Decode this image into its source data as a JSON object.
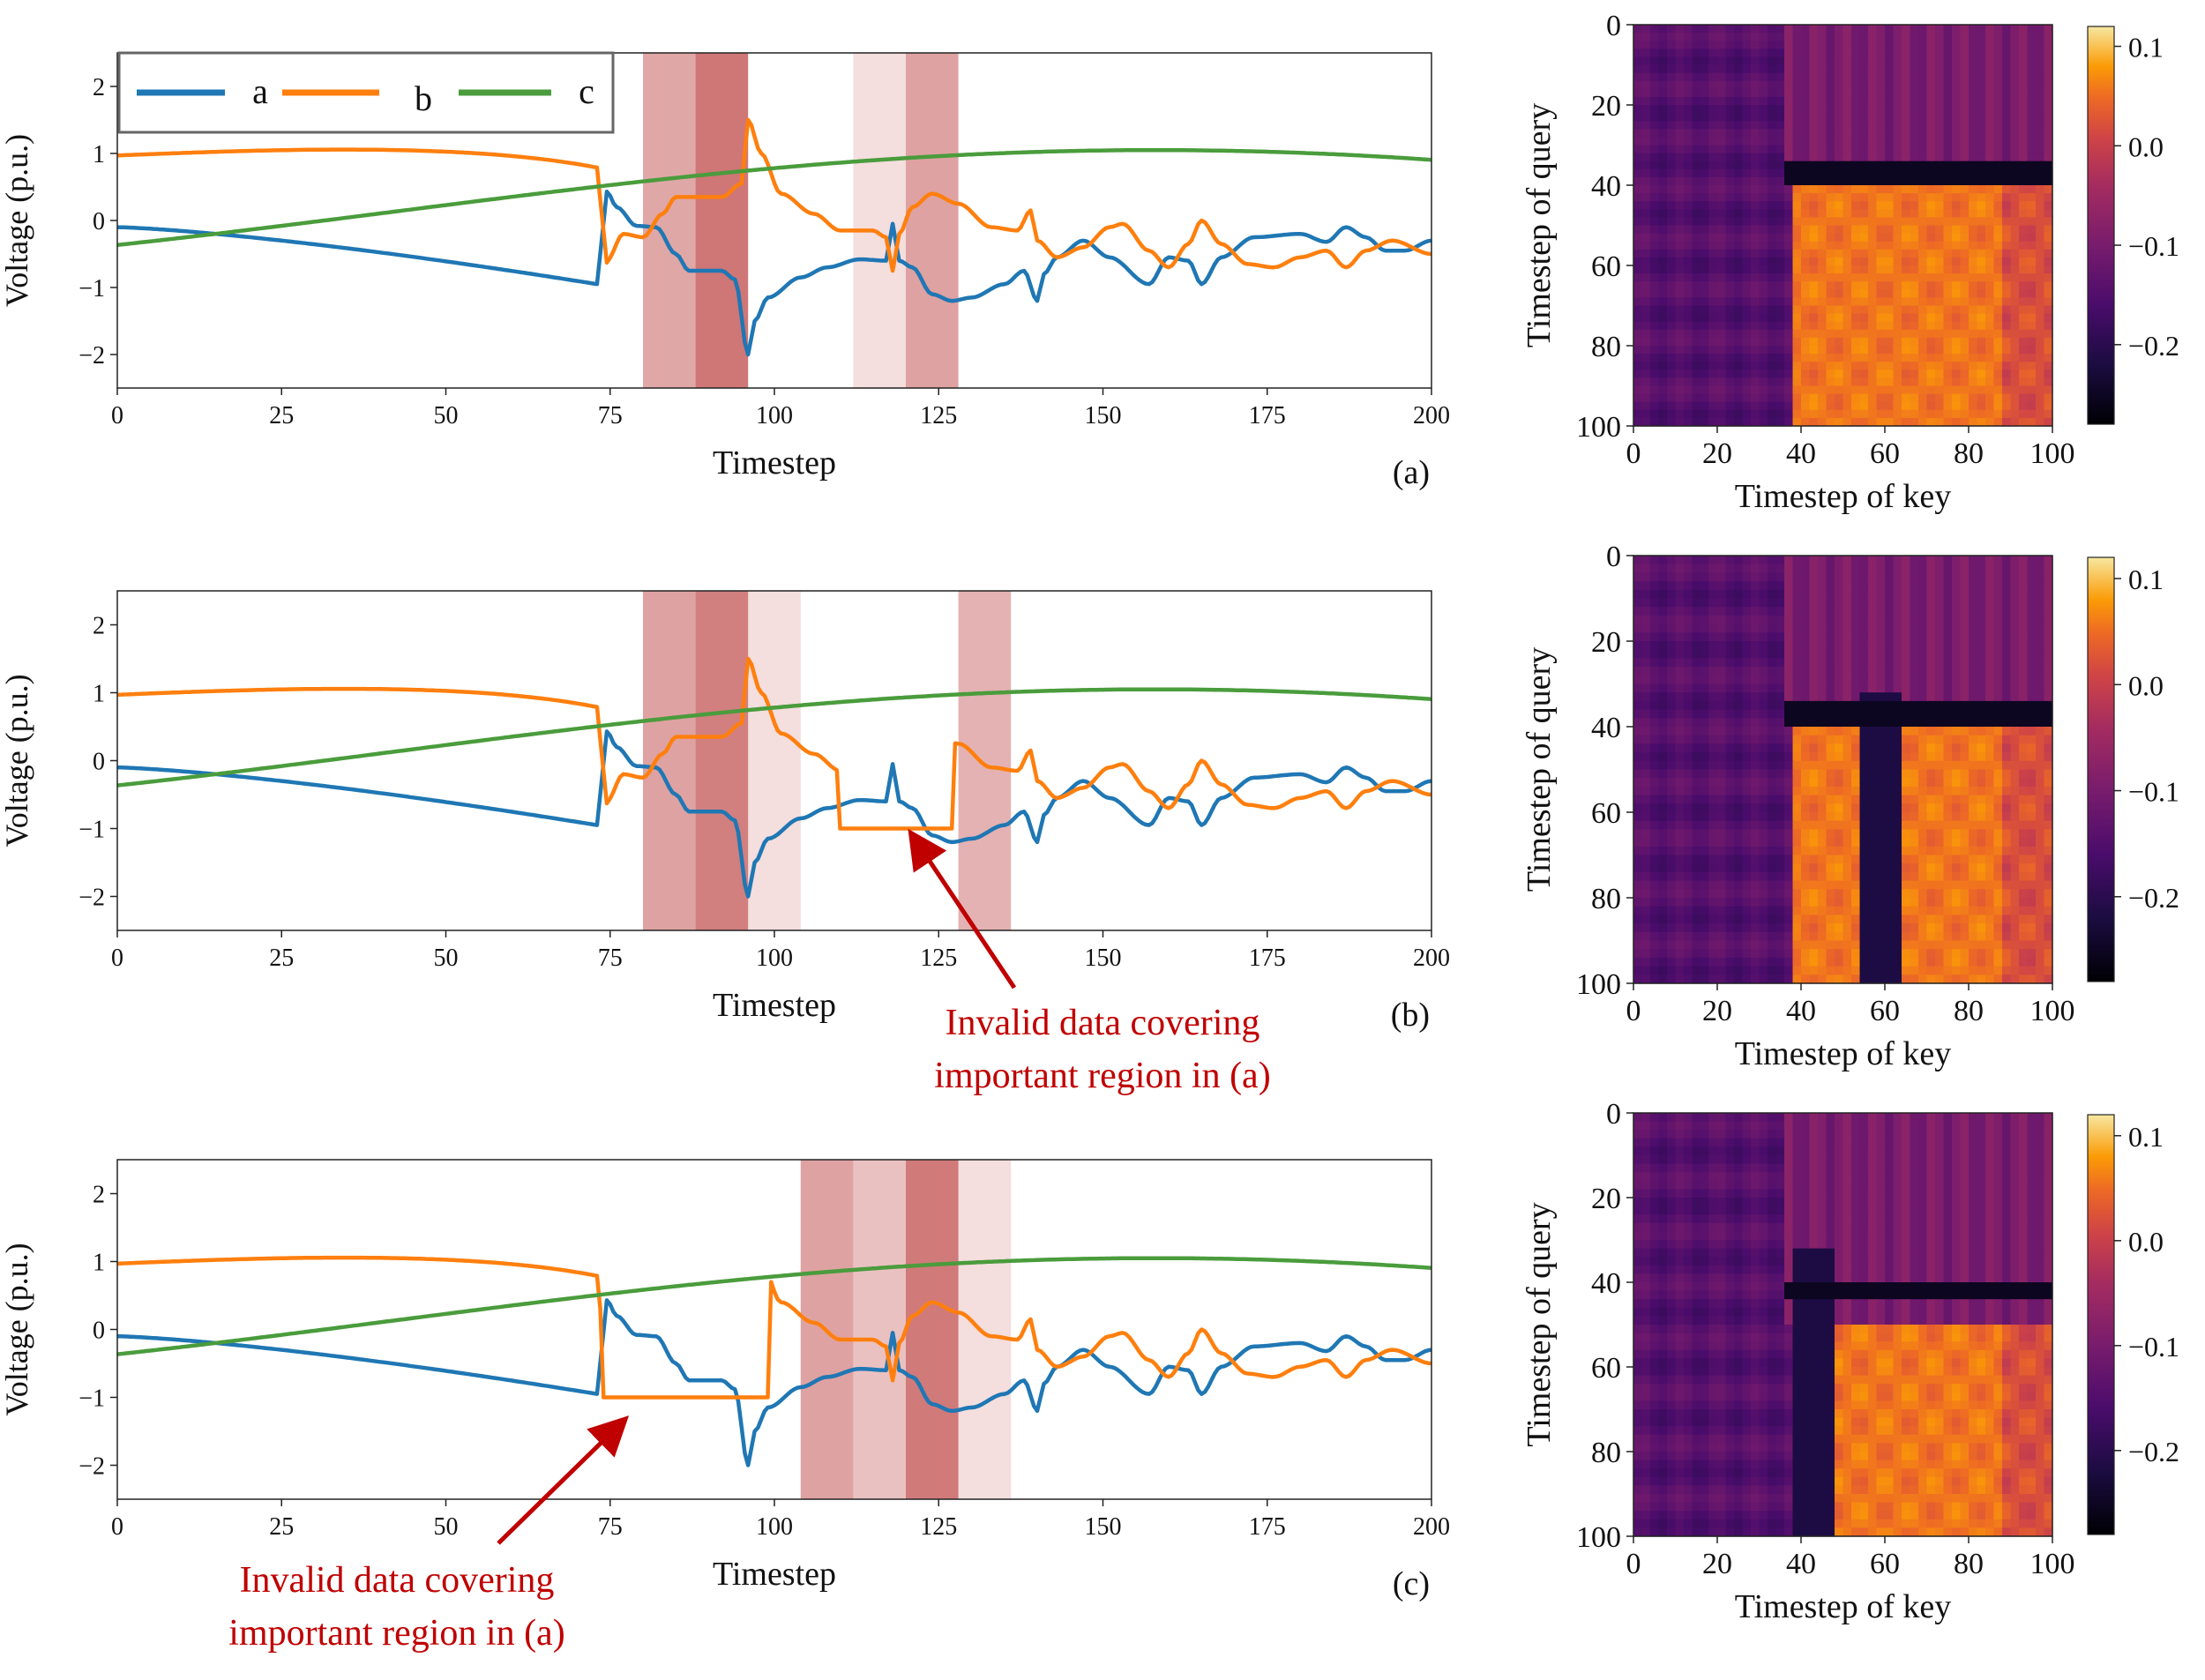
{
  "figure": {
    "colors": {
      "a": "#1f77b4",
      "b": "#ff7f0e",
      "c": "#4a9c3c",
      "highlight": "#b22222",
      "annotation": "#c00000"
    },
    "legend": {
      "placement": "upper-left",
      "entries": [
        "a",
        "b",
        "c"
      ]
    },
    "annotation_text_line1": "Invalid data covering",
    "annotation_text_line2": "important region in (a)",
    "heatmap_colormap": "inferno"
  },
  "chart_data": [
    {
      "type": "line",
      "panel": "(a)",
      "xlabel": "Timestep",
      "ylabel": "Voltage (p.u.)",
      "xlim": [
        0,
        200
      ],
      "ylim": [
        -2.5,
        2.5
      ],
      "xticks": [
        0,
        25,
        50,
        75,
        100,
        125,
        150,
        175,
        200
      ],
      "yticks": [
        -2,
        -1,
        0,
        1,
        2
      ],
      "series": [
        {
          "name": "a"
        },
        {
          "name": "b"
        },
        {
          "name": "c"
        }
      ],
      "invalid_intervals": [],
      "highlights": [
        {
          "x0": 80,
          "x1": 88,
          "alpha": 0.4
        },
        {
          "x0": 88,
          "x1": 96,
          "alpha": 0.62
        },
        {
          "x0": 112,
          "x1": 120,
          "alpha": 0.15
        },
        {
          "x0": 120,
          "x1": 128,
          "alpha": 0.42
        }
      ]
    },
    {
      "type": "line",
      "panel": "(b)",
      "xlabel": "Timestep",
      "ylabel": "Voltage (p.u.)",
      "xlim": [
        0,
        200
      ],
      "ylim": [
        -2.5,
        2.5
      ],
      "xticks": [
        0,
        25,
        50,
        75,
        100,
        125,
        150,
        175,
        200
      ],
      "yticks": [
        -2,
        -1,
        0,
        1,
        2
      ],
      "invalid_intervals": [
        {
          "series": "b",
          "x0": 110,
          "x1": 127,
          "value": -1
        }
      ],
      "highlights": [
        {
          "x0": 80,
          "x1": 88,
          "alpha": 0.42
        },
        {
          "x0": 88,
          "x1": 96,
          "alpha": 0.58
        },
        {
          "x0": 96,
          "x1": 104,
          "alpha": 0.15
        },
        {
          "x0": 128,
          "x1": 136,
          "alpha": 0.35
        }
      ],
      "annotation": {
        "text_line1": "Invalid data covering",
        "text_line2": "important region in (a)",
        "points_to_x": 121,
        "points_to_y": -1.1
      }
    },
    {
      "type": "line",
      "panel": "(c)",
      "xlabel": "Timestep",
      "ylabel": "Voltage (p.u.)",
      "xlim": [
        0,
        200
      ],
      "ylim": [
        -2.5,
        2.5
      ],
      "xticks": [
        0,
        25,
        50,
        75,
        100,
        125,
        150,
        175,
        200
      ],
      "yticks": [
        -2,
        -1,
        0,
        1,
        2
      ],
      "invalid_intervals": [
        {
          "series": "b",
          "x0": 74,
          "x1": 99,
          "value": -1
        }
      ],
      "highlights": [
        {
          "x0": 104,
          "x1": 112,
          "alpha": 0.42
        },
        {
          "x0": 112,
          "x1": 120,
          "alpha": 0.28
        },
        {
          "x0": 120,
          "x1": 128,
          "alpha": 0.6
        },
        {
          "x0": 128,
          "x1": 136,
          "alpha": 0.15
        }
      ],
      "annotation": {
        "text_line1": "Invalid data covering",
        "text_line2": "important region in (a)",
        "points_to_x": 77,
        "points_to_y": -1.35
      }
    },
    {
      "type": "heatmap",
      "panel": "(a)",
      "xlabel": "Timestep of key",
      "ylabel": "Timestep of query",
      "xlim": [
        0,
        100
      ],
      "ylim": [
        100,
        0
      ],
      "xticks": [
        0,
        20,
        40,
        60,
        80,
        100
      ],
      "yticks": [
        0,
        20,
        40,
        60,
        80,
        100
      ],
      "colorbar": {
        "vmin": -0.28,
        "vmax": 0.12,
        "ticks": [
          0.1,
          0.0,
          -0.1,
          -0.2
        ],
        "tick_labels": [
          "0.1",
          "0.0",
          "−0.1",
          "−0.2"
        ]
      },
      "bright_region": {
        "query_from": 38,
        "key_from": 38,
        "key_to": 100
      },
      "dark_columns": [],
      "dark_row_query": 37
    },
    {
      "type": "heatmap",
      "panel": "(b)",
      "xlabel": "Timestep of key",
      "ylabel": "Timestep of query",
      "xlim": [
        0,
        100
      ],
      "ylim": [
        100,
        0
      ],
      "xticks": [
        0,
        20,
        40,
        60,
        80,
        100
      ],
      "yticks": [
        0,
        20,
        40,
        60,
        80,
        100
      ],
      "colorbar": {
        "vmin": -0.28,
        "vmax": 0.12,
        "ticks": [
          0.1,
          0.0,
          -0.1,
          -0.2
        ],
        "tick_labels": [
          "0.1",
          "0.0",
          "−0.1",
          "−0.2"
        ]
      },
      "bright_region": {
        "query_from": 38,
        "key_from": 38,
        "key_to": 100
      },
      "dark_columns": [
        {
          "from": 55,
          "to": 64
        }
      ],
      "dark_row_query": 37
    },
    {
      "type": "heatmap",
      "panel": "(c)",
      "xlabel": "Timestep of key",
      "ylabel": "Timestep of query",
      "xlim": [
        0,
        100
      ],
      "ylim": [
        100,
        0
      ],
      "xticks": [
        0,
        20,
        40,
        60,
        80,
        100
      ],
      "yticks": [
        0,
        20,
        40,
        60,
        80,
        100
      ],
      "colorbar": {
        "vmin": -0.28,
        "vmax": 0.12,
        "ticks": [
          0.1,
          0.0,
          -0.1,
          -0.2
        ],
        "tick_labels": [
          "0.1",
          "0.0",
          "−0.1",
          "−0.2"
        ]
      },
      "bright_region": {
        "query_from": 50,
        "key_from": 48,
        "key_to": 100
      },
      "dark_columns": [
        {
          "from": 38,
          "to": 48
        }
      ],
      "dark_row_query": 42
    }
  ]
}
